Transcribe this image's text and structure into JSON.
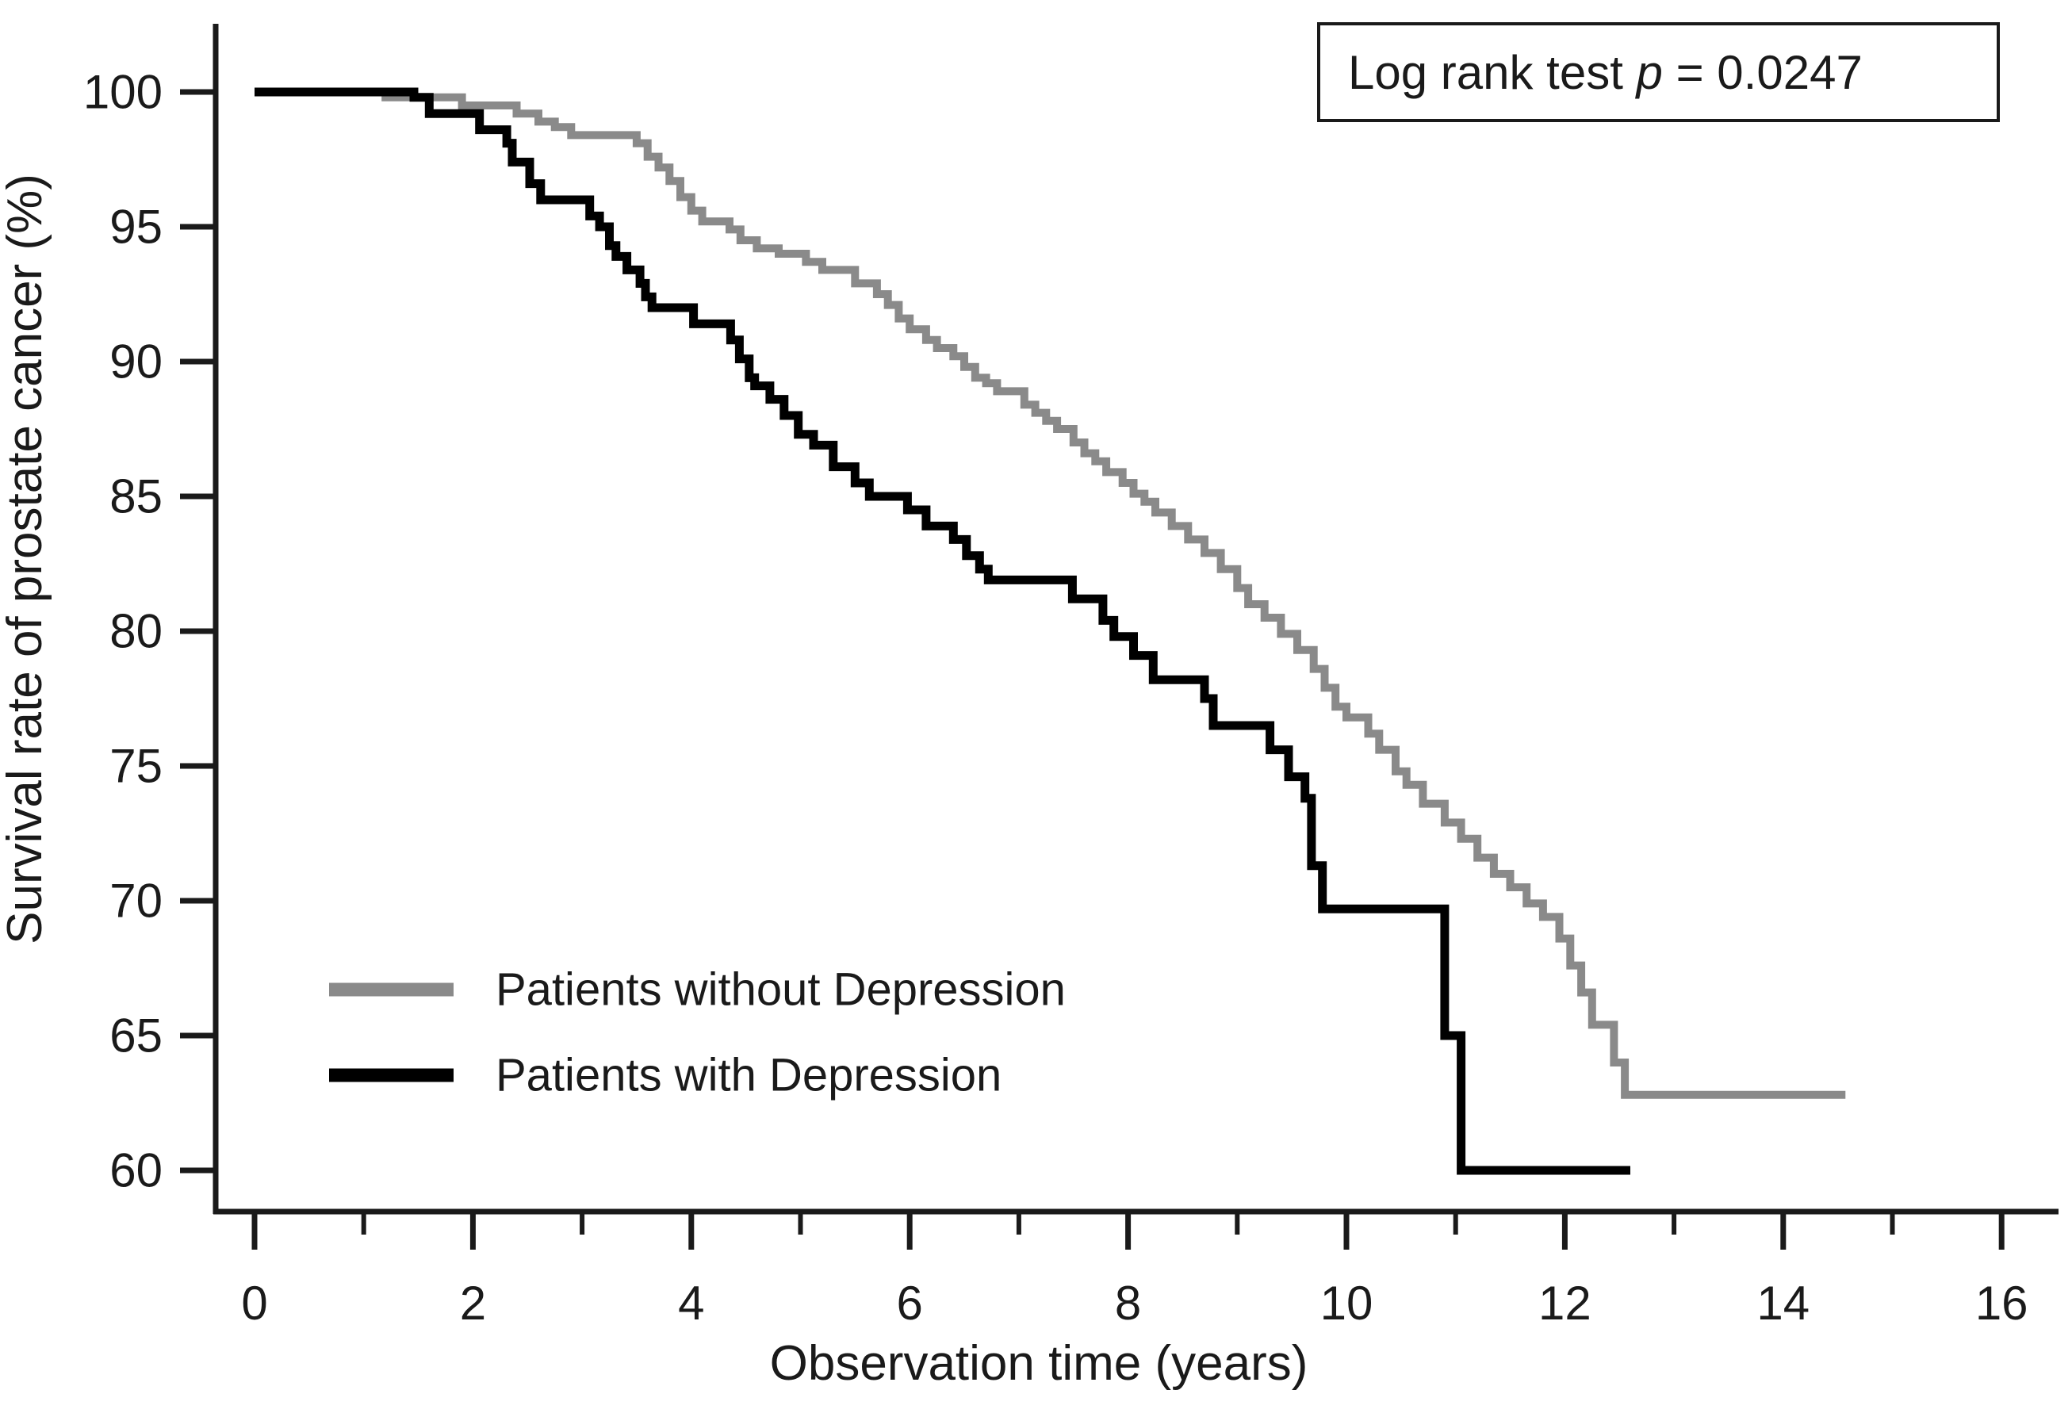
{
  "chart_data": {
    "type": "line",
    "subtype": "kaplan-meier-step",
    "title": "",
    "xlabel": "Observation time (years)",
    "ylabel": "Survival rate of prostate cancer (%)",
    "xlim": [
      0,
      16
    ],
    "ylim": [
      60,
      100
    ],
    "x_major_ticks": [
      0,
      2,
      4,
      6,
      8,
      10,
      12,
      14,
      16
    ],
    "x_minor_ticks": [
      1,
      3,
      5,
      7,
      9,
      11,
      13,
      15
    ],
    "y_ticks": [
      100,
      95,
      90,
      85,
      80,
      75,
      70,
      65,
      60
    ],
    "grid": false,
    "legend_position": "inside-lower-left",
    "annotation": {
      "prefix": "Log rank test ",
      "p_symbol": "p",
      "suffix": " =  0.0247"
    },
    "axis_color": "#1a1a1a",
    "series": [
      {
        "name": "Patients without Depression",
        "color": "#8a8a8a",
        "end_time": 14.57,
        "final_value": 62.8,
        "steps": [
          [
            0,
            100
          ],
          [
            1.2,
            99.8
          ],
          [
            1.9,
            99.5
          ],
          [
            2.4,
            99.2
          ],
          [
            2.6,
            98.9
          ],
          [
            2.75,
            98.7
          ],
          [
            2.9,
            98.4
          ],
          [
            3.5,
            98.1
          ],
          [
            3.6,
            97.6
          ],
          [
            3.7,
            97.2
          ],
          [
            3.8,
            96.7
          ],
          [
            3.9,
            96.1
          ],
          [
            4.0,
            95.6
          ],
          [
            4.1,
            95.2
          ],
          [
            4.35,
            94.9
          ],
          [
            4.45,
            94.5
          ],
          [
            4.6,
            94.2
          ],
          [
            4.8,
            94.0
          ],
          [
            5.05,
            93.7
          ],
          [
            5.2,
            93.4
          ],
          [
            5.5,
            92.9
          ],
          [
            5.7,
            92.5
          ],
          [
            5.8,
            92.1
          ],
          [
            5.9,
            91.6
          ],
          [
            6.0,
            91.2
          ],
          [
            6.15,
            90.8
          ],
          [
            6.25,
            90.5
          ],
          [
            6.4,
            90.2
          ],
          [
            6.5,
            89.8
          ],
          [
            6.6,
            89.4
          ],
          [
            6.7,
            89.2
          ],
          [
            6.8,
            88.9
          ],
          [
            7.05,
            88.4
          ],
          [
            7.15,
            88.1
          ],
          [
            7.25,
            87.8
          ],
          [
            7.35,
            87.5
          ],
          [
            7.5,
            87.0
          ],
          [
            7.6,
            86.6
          ],
          [
            7.7,
            86.3
          ],
          [
            7.8,
            85.9
          ],
          [
            7.95,
            85.5
          ],
          [
            8.05,
            85.1
          ],
          [
            8.15,
            84.8
          ],
          [
            8.25,
            84.4
          ],
          [
            8.4,
            83.9
          ],
          [
            8.55,
            83.4
          ],
          [
            8.7,
            82.9
          ],
          [
            8.85,
            82.3
          ],
          [
            9.0,
            81.6
          ],
          [
            9.1,
            81.0
          ],
          [
            9.25,
            80.5
          ],
          [
            9.4,
            79.9
          ],
          [
            9.55,
            79.3
          ],
          [
            9.7,
            78.6
          ],
          [
            9.8,
            77.9
          ],
          [
            9.9,
            77.2
          ],
          [
            10.0,
            76.8
          ],
          [
            10.2,
            76.2
          ],
          [
            10.3,
            75.6
          ],
          [
            10.45,
            74.8
          ],
          [
            10.55,
            74.3
          ],
          [
            10.7,
            73.6
          ],
          [
            10.9,
            72.9
          ],
          [
            11.05,
            72.3
          ],
          [
            11.2,
            71.6
          ],
          [
            11.35,
            71.0
          ],
          [
            11.5,
            70.5
          ],
          [
            11.65,
            69.9
          ],
          [
            11.8,
            69.4
          ],
          [
            11.95,
            68.6
          ],
          [
            12.05,
            67.6
          ],
          [
            12.15,
            66.6
          ],
          [
            12.25,
            65.4
          ],
          [
            12.45,
            64.0
          ],
          [
            12.55,
            62.8
          ]
        ]
      },
      {
        "name": "Patients with Depression",
        "color": "#000000",
        "end_time": 12.6,
        "final_value": 60.0,
        "steps": [
          [
            0,
            100
          ],
          [
            1.46,
            99.8
          ],
          [
            1.6,
            99.2
          ],
          [
            2.06,
            98.6
          ],
          [
            2.31,
            98.1
          ],
          [
            2.36,
            97.4
          ],
          [
            2.52,
            96.6
          ],
          [
            2.62,
            96.0
          ],
          [
            3.07,
            95.4
          ],
          [
            3.16,
            95.0
          ],
          [
            3.25,
            94.3
          ],
          [
            3.31,
            93.9
          ],
          [
            3.41,
            93.4
          ],
          [
            3.53,
            92.9
          ],
          [
            3.58,
            92.4
          ],
          [
            3.64,
            92.0
          ],
          [
            4.02,
            91.4
          ],
          [
            4.36,
            90.8
          ],
          [
            4.44,
            90.1
          ],
          [
            4.53,
            89.4
          ],
          [
            4.58,
            89.1
          ],
          [
            4.72,
            88.6
          ],
          [
            4.85,
            88.0
          ],
          [
            4.98,
            87.3
          ],
          [
            5.12,
            86.9
          ],
          [
            5.3,
            86.1
          ],
          [
            5.5,
            85.5
          ],
          [
            5.63,
            85.0
          ],
          [
            5.98,
            84.5
          ],
          [
            6.15,
            83.9
          ],
          [
            6.4,
            83.4
          ],
          [
            6.52,
            82.8
          ],
          [
            6.64,
            82.3
          ],
          [
            6.72,
            81.9
          ],
          [
            7.49,
            81.2
          ],
          [
            7.77,
            80.4
          ],
          [
            7.87,
            79.8
          ],
          [
            8.05,
            79.1
          ],
          [
            8.23,
            78.2
          ],
          [
            8.7,
            77.5
          ],
          [
            8.78,
            76.5
          ],
          [
            9.3,
            75.6
          ],
          [
            9.47,
            74.6
          ],
          [
            9.62,
            73.8
          ],
          [
            9.68,
            71.3
          ],
          [
            9.78,
            69.7
          ],
          [
            10.9,
            65.0
          ],
          [
            11.05,
            60.0
          ]
        ]
      }
    ]
  }
}
